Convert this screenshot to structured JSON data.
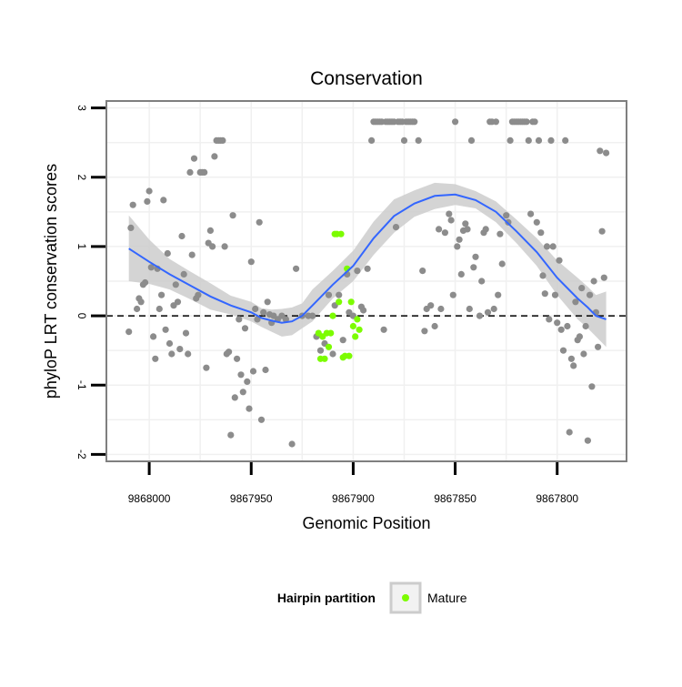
{
  "chart_data": {
    "type": "scatter",
    "title": "Conservation",
    "xlabel": "Genomic Position",
    "ylabel": "phyloP LRT conservation scores",
    "x_reversed": true,
    "xlim": [
      9868021,
      9867766
    ],
    "ylim": [
      -2.1,
      3.1
    ],
    "x_ticks": [
      9868000,
      9867950,
      9867900,
      9867850,
      9867800
    ],
    "x_tick_labels": [
      "9868000",
      "9867950",
      "9867900",
      "9867850",
      "9867800"
    ],
    "y_ticks": [
      -2,
      -1,
      0,
      1,
      2,
      3
    ],
    "y_tick_labels": [
      "-2",
      "-1",
      "0",
      "1",
      "2",
      "3"
    ],
    "grid": true,
    "reference_line": {
      "y": 0,
      "style": "dashed"
    },
    "legend": {
      "title": "Hairpin partition",
      "placement": "bottom",
      "entries": [
        {
          "label": "Mature",
          "color": "#7cfc00"
        }
      ]
    },
    "colors": {
      "points": "#8c8c8c",
      "mature": "#7cfc00",
      "smooth": "#3366ff",
      "band": "#cccccc",
      "panel_border": "#7f7f7f",
      "grid": "#f0f0f0"
    },
    "series": [
      {
        "role": "background",
        "points": [
          [
            9868010,
            -0.23
          ],
          [
            9868009,
            1.27
          ],
          [
            9868008,
            1.6
          ],
          [
            9868006,
            0.1
          ],
          [
            9868005,
            0.25
          ],
          [
            9868004,
            0.2
          ],
          [
            9868003,
            0.45
          ],
          [
            9868002,
            0.48
          ],
          [
            9868001,
            1.65
          ],
          [
            9868000,
            1.8
          ],
          [
            9867999,
            0.7
          ],
          [
            9867998,
            -0.3
          ],
          [
            9867997,
            -0.62
          ],
          [
            9867996,
            0.68
          ],
          [
            9867995,
            0.1
          ],
          [
            9867994,
            0.3
          ],
          [
            9867993,
            1.67
          ],
          [
            9867992,
            -0.2
          ],
          [
            9867991,
            0.9
          ],
          [
            9867990,
            -0.4
          ],
          [
            9867989,
            -0.55
          ],
          [
            9867988,
            0.15
          ],
          [
            9867987,
            0.45
          ],
          [
            9867986,
            0.2
          ],
          [
            9867985,
            -0.48
          ],
          [
            9867984,
            1.15
          ],
          [
            9867983,
            0.6
          ],
          [
            9867982,
            -0.25
          ],
          [
            9867981,
            -0.55
          ],
          [
            9867980,
            2.07
          ],
          [
            9867979,
            0.88
          ],
          [
            9867978,
            2.27
          ],
          [
            9867977,
            0.25
          ],
          [
            9867976,
            0.3
          ],
          [
            9867975,
            2.07
          ],
          [
            9867974,
            2.07
          ],
          [
            9867973,
            2.07
          ],
          [
            9867972,
            -0.75
          ],
          [
            9867971,
            1.05
          ],
          [
            9867970,
            1.23
          ],
          [
            9867969,
            1.0
          ],
          [
            9867968,
            2.3
          ],
          [
            9867967,
            2.53
          ],
          [
            9867966,
            2.53
          ],
          [
            9867965,
            2.53
          ],
          [
            9867964,
            2.53
          ],
          [
            9867963,
            1.0
          ],
          [
            9867962,
            -0.55
          ],
          [
            9867961,
            -0.52
          ],
          [
            9867960,
            -1.72
          ],
          [
            9867959,
            1.45
          ],
          [
            9867958,
            -1.18
          ],
          [
            9867957,
            -0.62
          ],
          [
            9867956,
            -0.05
          ],
          [
            9867955,
            -0.85
          ],
          [
            9867954,
            -1.1
          ],
          [
            9867953,
            -0.18
          ],
          [
            9867952,
            -0.95
          ],
          [
            9867951,
            -1.34
          ],
          [
            9867950,
            0.78
          ],
          [
            9867949,
            -0.8
          ],
          [
            9867948,
            0.1
          ],
          [
            9867947,
            -0.05
          ],
          [
            9867946,
            1.35
          ],
          [
            9867945,
            -1.5
          ],
          [
            9867944,
            0.05
          ],
          [
            9867943,
            -0.78
          ],
          [
            9867942,
            0.2
          ],
          [
            9867941,
            0.02
          ],
          [
            9867940,
            -0.1
          ],
          [
            9867939,
            0.0
          ],
          [
            9867937,
            -0.05
          ],
          [
            9867935,
            0.0
          ],
          [
            9867933,
            -0.05
          ],
          [
            9867930,
            -1.85
          ],
          [
            9867928,
            0.68
          ],
          [
            9867925,
            0.0
          ],
          [
            9867922,
            0.0
          ],
          [
            9867920,
            0.0
          ],
          [
            9867918,
            -0.3
          ],
          [
            9867916,
            -0.5
          ],
          [
            9867914,
            -0.4
          ],
          [
            9867912,
            0.3
          ],
          [
            9867910,
            -0.55
          ],
          [
            9867909,
            0.15
          ],
          [
            9867907,
            0.3
          ],
          [
            9867905,
            -0.35
          ],
          [
            9867903,
            0.6
          ],
          [
            9867902,
            0.05
          ],
          [
            9867900,
            0.0
          ],
          [
            9867898,
            0.65
          ],
          [
            9867896,
            0.13
          ],
          [
            9867895,
            0.08
          ],
          [
            9867893,
            0.68
          ],
          [
            9867891,
            2.53
          ],
          [
            9867890,
            2.8
          ],
          [
            9867889,
            2.8
          ],
          [
            9867888,
            2.8
          ],
          [
            9867887,
            2.8
          ],
          [
            9867886,
            2.8
          ],
          [
            9867885,
            -0.2
          ],
          [
            9867884,
            2.8
          ],
          [
            9867883,
            2.8
          ],
          [
            9867882,
            2.8
          ],
          [
            9867881,
            2.8
          ],
          [
            9867880,
            2.8
          ],
          [
            9867879,
            1.28
          ],
          [
            9867878,
            2.8
          ],
          [
            9867877,
            2.8
          ],
          [
            9867876,
            2.8
          ],
          [
            9867875,
            2.53
          ],
          [
            9867874,
            2.8
          ],
          [
            9867873,
            2.8
          ],
          [
            9867872,
            2.8
          ],
          [
            9867871,
            2.8
          ],
          [
            9867870,
            2.8
          ],
          [
            9867868,
            2.53
          ],
          [
            9867866,
            0.65
          ],
          [
            9867865,
            -0.22
          ],
          [
            9867864,
            0.1
          ],
          [
            9867862,
            0.15
          ],
          [
            9867860,
            -0.15
          ],
          [
            9867858,
            1.25
          ],
          [
            9867857,
            0.1
          ],
          [
            9867855,
            1.2
          ],
          [
            9867853,
            1.47
          ],
          [
            9867852,
            1.38
          ],
          [
            9867851,
            0.3
          ],
          [
            9867850,
            2.8
          ],
          [
            9867849,
            1.0
          ],
          [
            9867848,
            1.1
          ],
          [
            9867847,
            0.6
          ],
          [
            9867846,
            1.23
          ],
          [
            9867845,
            1.33
          ],
          [
            9867844,
            1.25
          ],
          [
            9867843,
            0.1
          ],
          [
            9867842,
            2.53
          ],
          [
            9867841,
            0.7
          ],
          [
            9867840,
            0.85
          ],
          [
            9867838,
            0.0
          ],
          [
            9867837,
            0.5
          ],
          [
            9867836,
            1.2
          ],
          [
            9867835,
            1.25
          ],
          [
            9867834,
            0.05
          ],
          [
            9867833,
            2.8
          ],
          [
            9867832,
            2.8
          ],
          [
            9867831,
            0.1
          ],
          [
            9867830,
            2.8
          ],
          [
            9867829,
            0.3
          ],
          [
            9867828,
            1.18
          ],
          [
            9867827,
            0.75
          ],
          [
            9867825,
            1.45
          ],
          [
            9867824,
            1.35
          ],
          [
            9867823,
            2.53
          ],
          [
            9867822,
            2.8
          ],
          [
            9867821,
            2.8
          ],
          [
            9867820,
            2.8
          ],
          [
            9867819,
            2.8
          ],
          [
            9867818,
            2.8
          ],
          [
            9867817,
            2.8
          ],
          [
            9867816,
            2.8
          ],
          [
            9867815,
            2.8
          ],
          [
            9867814,
            2.53
          ],
          [
            9867813,
            1.47
          ],
          [
            9867812,
            2.8
          ],
          [
            9867811,
            2.8
          ],
          [
            9867810,
            1.35
          ],
          [
            9867809,
            2.53
          ],
          [
            9867808,
            1.2
          ],
          [
            9867807,
            0.58
          ],
          [
            9867806,
            0.32
          ],
          [
            9867805,
            1.0
          ],
          [
            9867804,
            -0.05
          ],
          [
            9867803,
            2.53
          ],
          [
            9867802,
            1.0
          ],
          [
            9867801,
            0.3
          ],
          [
            9867800,
            -0.1
          ],
          [
            9867799,
            0.8
          ],
          [
            9867798,
            -0.2
          ],
          [
            9867797,
            -0.5
          ],
          [
            9867796,
            2.53
          ],
          [
            9867795,
            -0.15
          ],
          [
            9867794,
            -1.68
          ],
          [
            9867793,
            -0.62
          ],
          [
            9867792,
            -0.72
          ],
          [
            9867791,
            0.2
          ],
          [
            9867790,
            -0.35
          ],
          [
            9867789,
            -0.3
          ],
          [
            9867788,
            0.4
          ],
          [
            9867787,
            -0.55
          ],
          [
            9867786,
            -0.15
          ],
          [
            9867785,
            -1.8
          ],
          [
            9867784,
            0.3
          ],
          [
            9867783,
            -1.02
          ],
          [
            9867782,
            0.5
          ],
          [
            9867781,
            0.05
          ],
          [
            9867780,
            -0.45
          ],
          [
            9867779,
            2.38
          ],
          [
            9867778,
            1.22
          ],
          [
            9867777,
            0.55
          ],
          [
            9867776,
            2.35
          ]
        ]
      },
      {
        "name": "Mature",
        "role": "mature",
        "points": [
          [
            9867917,
            -0.25
          ],
          [
            9867916,
            -0.62
          ],
          [
            9867915,
            -0.3
          ],
          [
            9867914,
            -0.62
          ],
          [
            9867913,
            -0.25
          ],
          [
            9867912,
            -0.45
          ],
          [
            9867911,
            -0.25
          ],
          [
            9867910,
            0.0
          ],
          [
            9867909,
            1.18
          ],
          [
            9867908,
            1.18
          ],
          [
            9867907,
            0.2
          ],
          [
            9867906,
            1.18
          ],
          [
            9867905,
            -0.6
          ],
          [
            9867904,
            -0.58
          ],
          [
            9867903,
            0.68
          ],
          [
            9867902,
            -0.58
          ],
          [
            9867901,
            0.2
          ],
          [
            9867900,
            -0.15
          ],
          [
            9867899,
            -0.3
          ],
          [
            9867898,
            -0.05
          ],
          [
            9867897,
            -0.2
          ]
        ]
      }
    ],
    "smooth": {
      "x": [
        9868010,
        9868000,
        9867990,
        9867980,
        9867970,
        9867960,
        9867950,
        9867945,
        9867940,
        9867935,
        9867930,
        9867925,
        9867920,
        9867910,
        9867900,
        9867890,
        9867880,
        9867870,
        9867860,
        9867850,
        9867840,
        9867830,
        9867820,
        9867810,
        9867800,
        9867790,
        9867785,
        9867781,
        9867776
      ],
      "y": [
        0.97,
        0.78,
        0.6,
        0.44,
        0.28,
        0.15,
        0.05,
        -0.03,
        -0.07,
        -0.1,
        -0.08,
        0.0,
        0.15,
        0.45,
        0.72,
        1.12,
        1.44,
        1.62,
        1.73,
        1.75,
        1.67,
        1.5,
        1.22,
        0.92,
        0.55,
        0.25,
        0.12,
        0.0,
        -0.05
      ],
      "lower": [
        0.5,
        0.46,
        0.38,
        0.24,
        0.09,
        0.02,
        -0.08,
        -0.16,
        -0.23,
        -0.3,
        -0.28,
        -0.18,
        -0.08,
        0.25,
        0.5,
        0.88,
        1.2,
        1.43,
        1.54,
        1.6,
        1.55,
        1.35,
        1.05,
        0.72,
        0.3,
        -0.05,
        -0.18,
        -0.3,
        -0.45
      ],
      "upper": [
        1.45,
        1.1,
        0.82,
        0.64,
        0.47,
        0.29,
        0.2,
        0.11,
        0.09,
        0.1,
        0.12,
        0.18,
        0.38,
        0.65,
        0.94,
        1.36,
        1.68,
        1.81,
        1.92,
        1.9,
        1.8,
        1.65,
        1.39,
        1.12,
        0.8,
        0.55,
        0.42,
        0.3,
        0.35
      ]
    }
  }
}
